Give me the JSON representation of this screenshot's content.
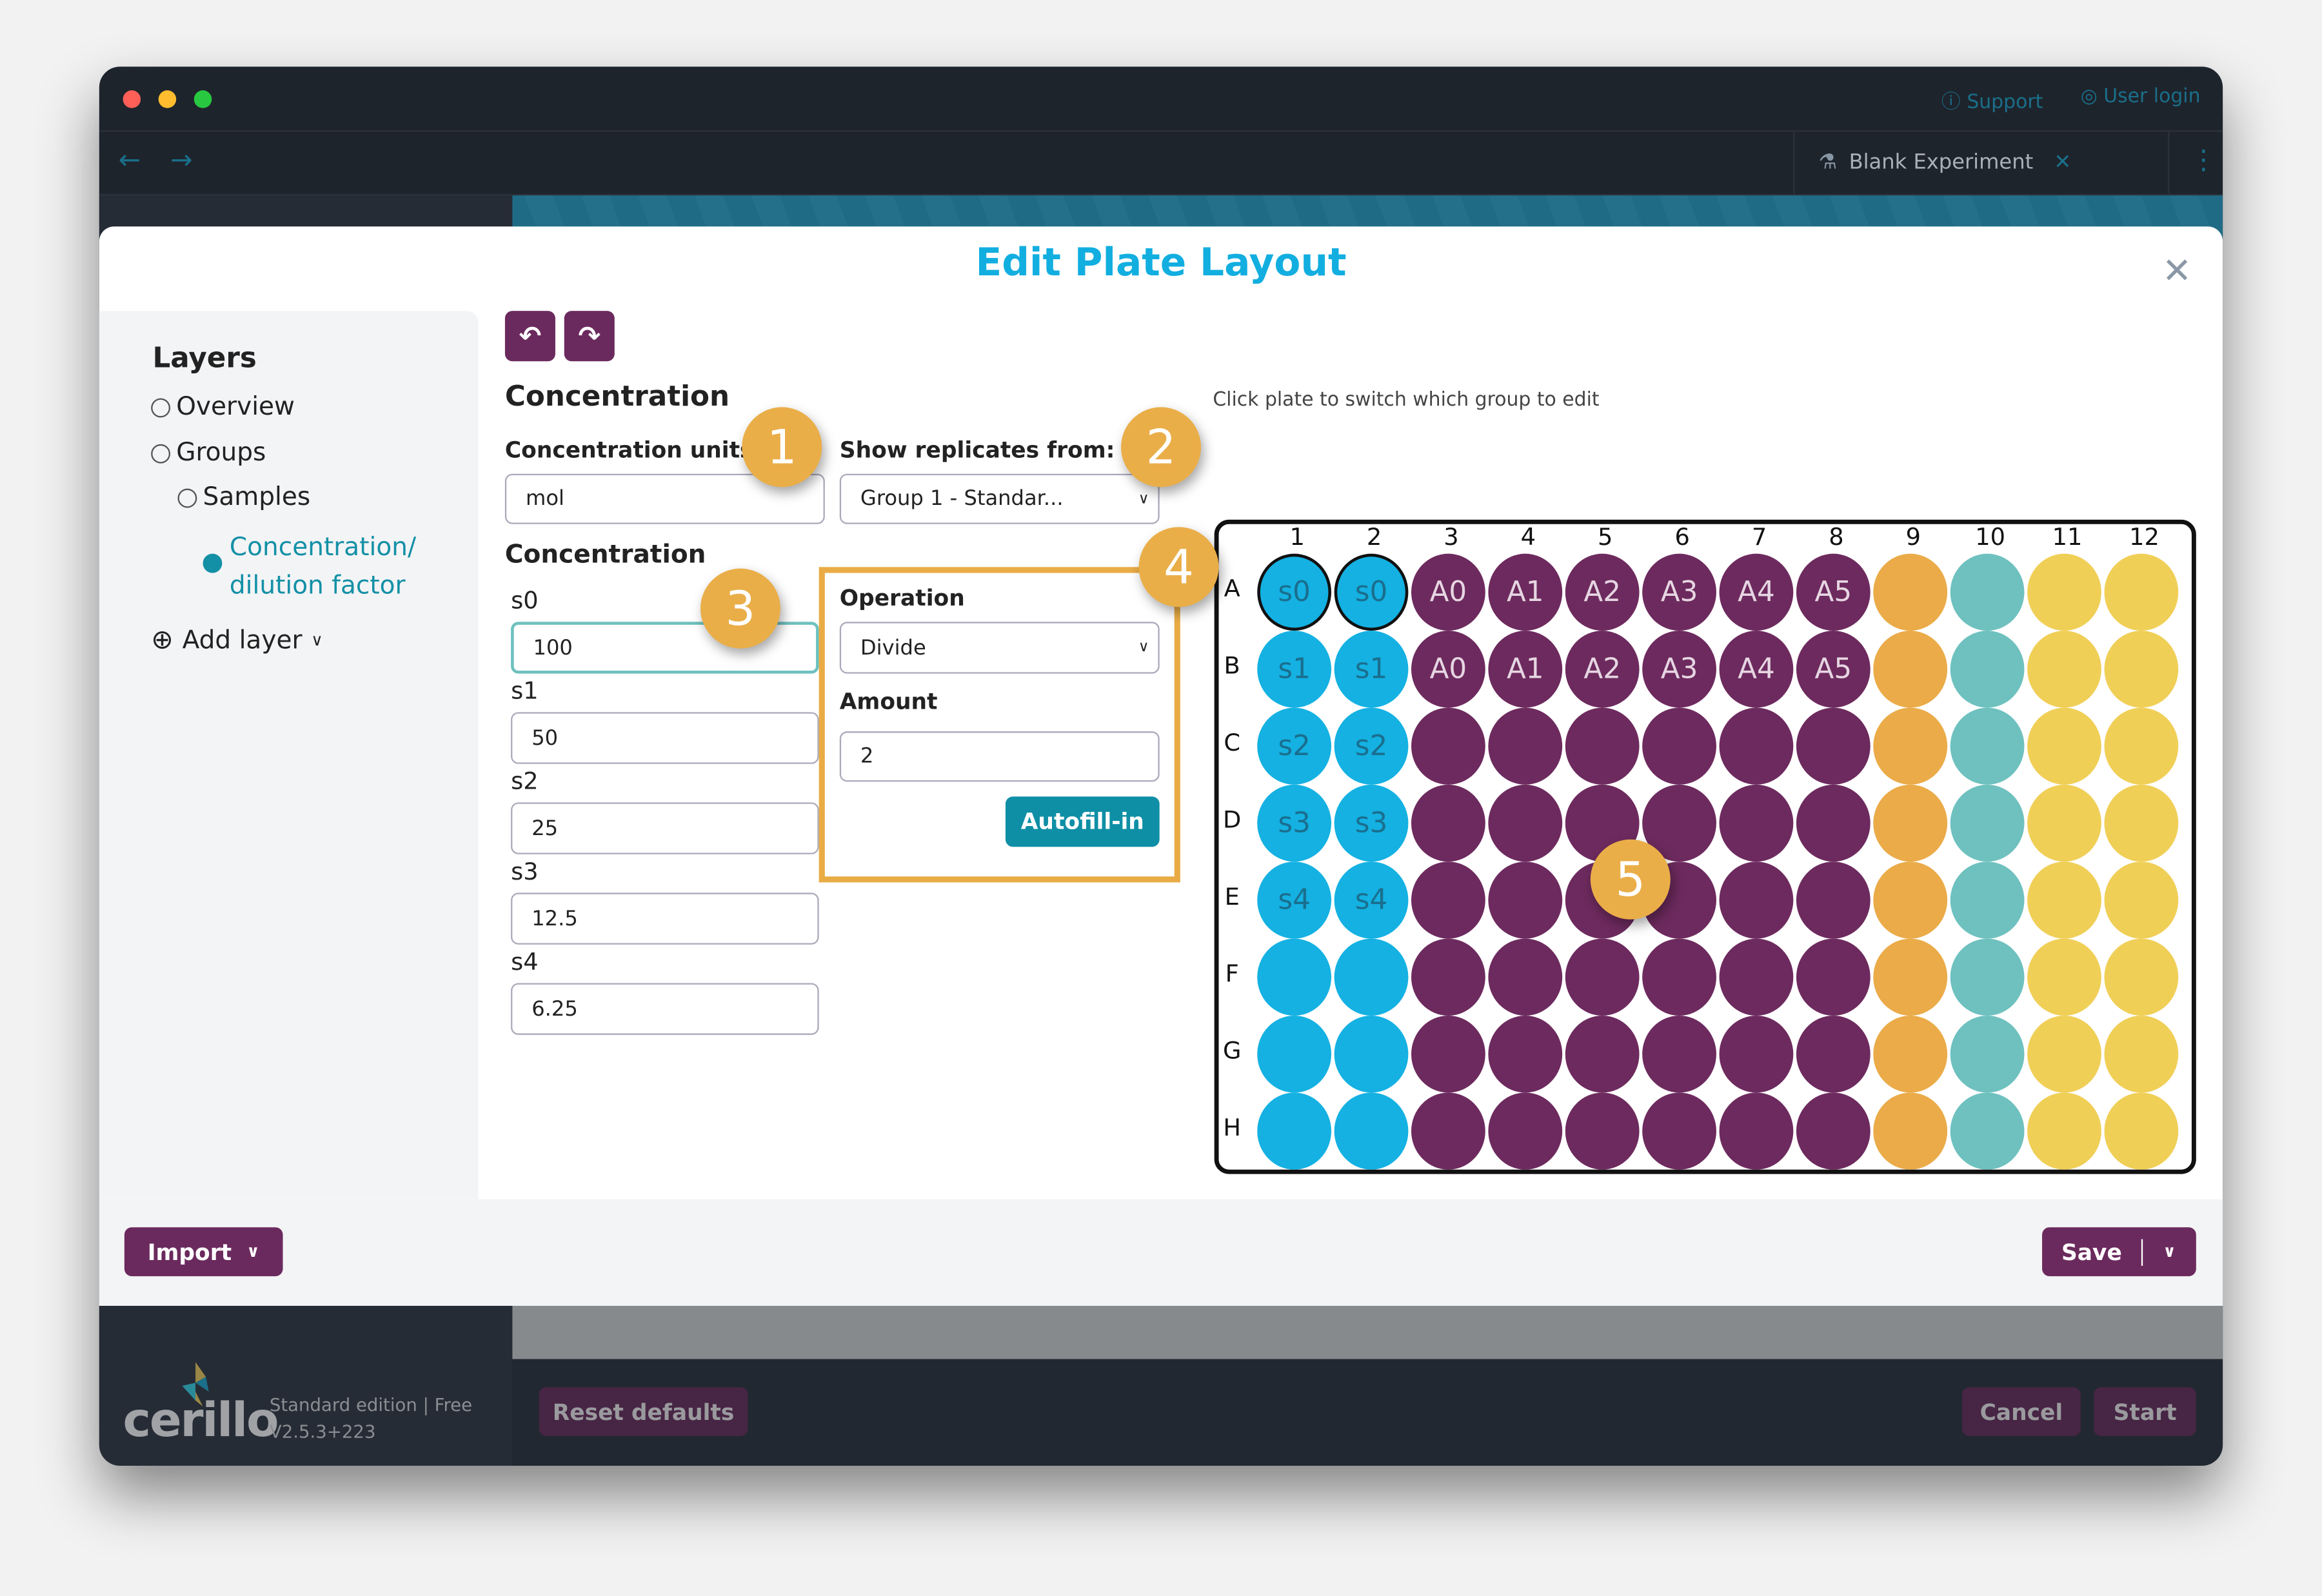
{
  "window": {
    "top_links": {
      "support": "Support",
      "user_login": "User login"
    },
    "tab": {
      "label": "Blank Experiment"
    }
  },
  "modal": {
    "title": "Edit Plate Layout"
  },
  "layers": {
    "heading": "Layers",
    "items": [
      {
        "label": "Overview"
      },
      {
        "label": "Groups"
      },
      {
        "label": "Samples"
      },
      {
        "label": "Concentration/",
        "label2": "dilution factor",
        "selected": true
      }
    ],
    "add_layer": "Add layer"
  },
  "editor": {
    "heading": "Concentration",
    "units_label": "Concentration units",
    "units_value": "mol",
    "replicates_label": "Show replicates from:",
    "replicates_value": "Group 1 - Standar...",
    "conc_heading": "Concentration",
    "standards": [
      {
        "label": "s0",
        "value": "100"
      },
      {
        "label": "s1",
        "value": "50"
      },
      {
        "label": "s2",
        "value": "25"
      },
      {
        "label": "s3",
        "value": "12.5"
      },
      {
        "label": "s4",
        "value": "6.25"
      }
    ],
    "operation_label": "Operation",
    "operation_value": "Divide",
    "amount_label": "Amount",
    "amount_value": "2",
    "autofill_label": "Autofill-in",
    "hint": "Click plate to switch which group to edit"
  },
  "badges": [
    "1",
    "2",
    "3",
    "4",
    "5"
  ],
  "plate": {
    "columns": [
      "1",
      "2",
      "3",
      "4",
      "5",
      "6",
      "7",
      "8",
      "9",
      "10",
      "11",
      "12"
    ],
    "rows": [
      "A",
      "B",
      "C",
      "D",
      "E",
      "F",
      "G",
      "H"
    ],
    "column_groups": [
      "standard",
      "standard",
      "sample",
      "sample",
      "sample",
      "sample",
      "sample",
      "sample",
      "orange",
      "teal",
      "yellow",
      "yellow"
    ],
    "group_colors": {
      "standard": "#14b1e2",
      "sample": "#6d2a5e",
      "orange": "#eaab48",
      "teal": "#6ec1bf",
      "yellow": "#f0cf57"
    },
    "selected_wells": [
      "A1",
      "A2"
    ],
    "labels": [
      [
        "s0",
        "s0",
        "A0",
        "A1",
        "A2",
        "A3",
        "A4",
        "A5",
        "",
        "",
        "",
        ""
      ],
      [
        "s1",
        "s1",
        "A0",
        "A1",
        "A2",
        "A3",
        "A4",
        "A5",
        "",
        "",
        "",
        ""
      ],
      [
        "s2",
        "s2",
        "",
        "",
        "",
        "",
        "",
        "",
        "",
        "",
        "",
        ""
      ],
      [
        "s3",
        "s3",
        "",
        "",
        "",
        "",
        "",
        "",
        "",
        "",
        "",
        ""
      ],
      [
        "s4",
        "s4",
        "",
        "",
        "",
        "",
        "",
        "",
        "",
        "",
        "",
        ""
      ],
      [
        "",
        "",
        "",
        "",
        "",
        "",
        "",
        "",
        "",
        "",
        "",
        ""
      ],
      [
        "",
        "",
        "",
        "",
        "",
        "",
        "",
        "",
        "",
        "",
        "",
        ""
      ],
      [
        "",
        "",
        "",
        "",
        "",
        "",
        "",
        "",
        "",
        "",
        "",
        ""
      ]
    ]
  },
  "footer": {
    "import": "Import",
    "save": "Save"
  },
  "app": {
    "logo": "cerillo",
    "edition": "Standard edition | Free",
    "version": "V2.5.3+223",
    "reset": "Reset defaults",
    "cancel": "Cancel",
    "start": "Start"
  }
}
